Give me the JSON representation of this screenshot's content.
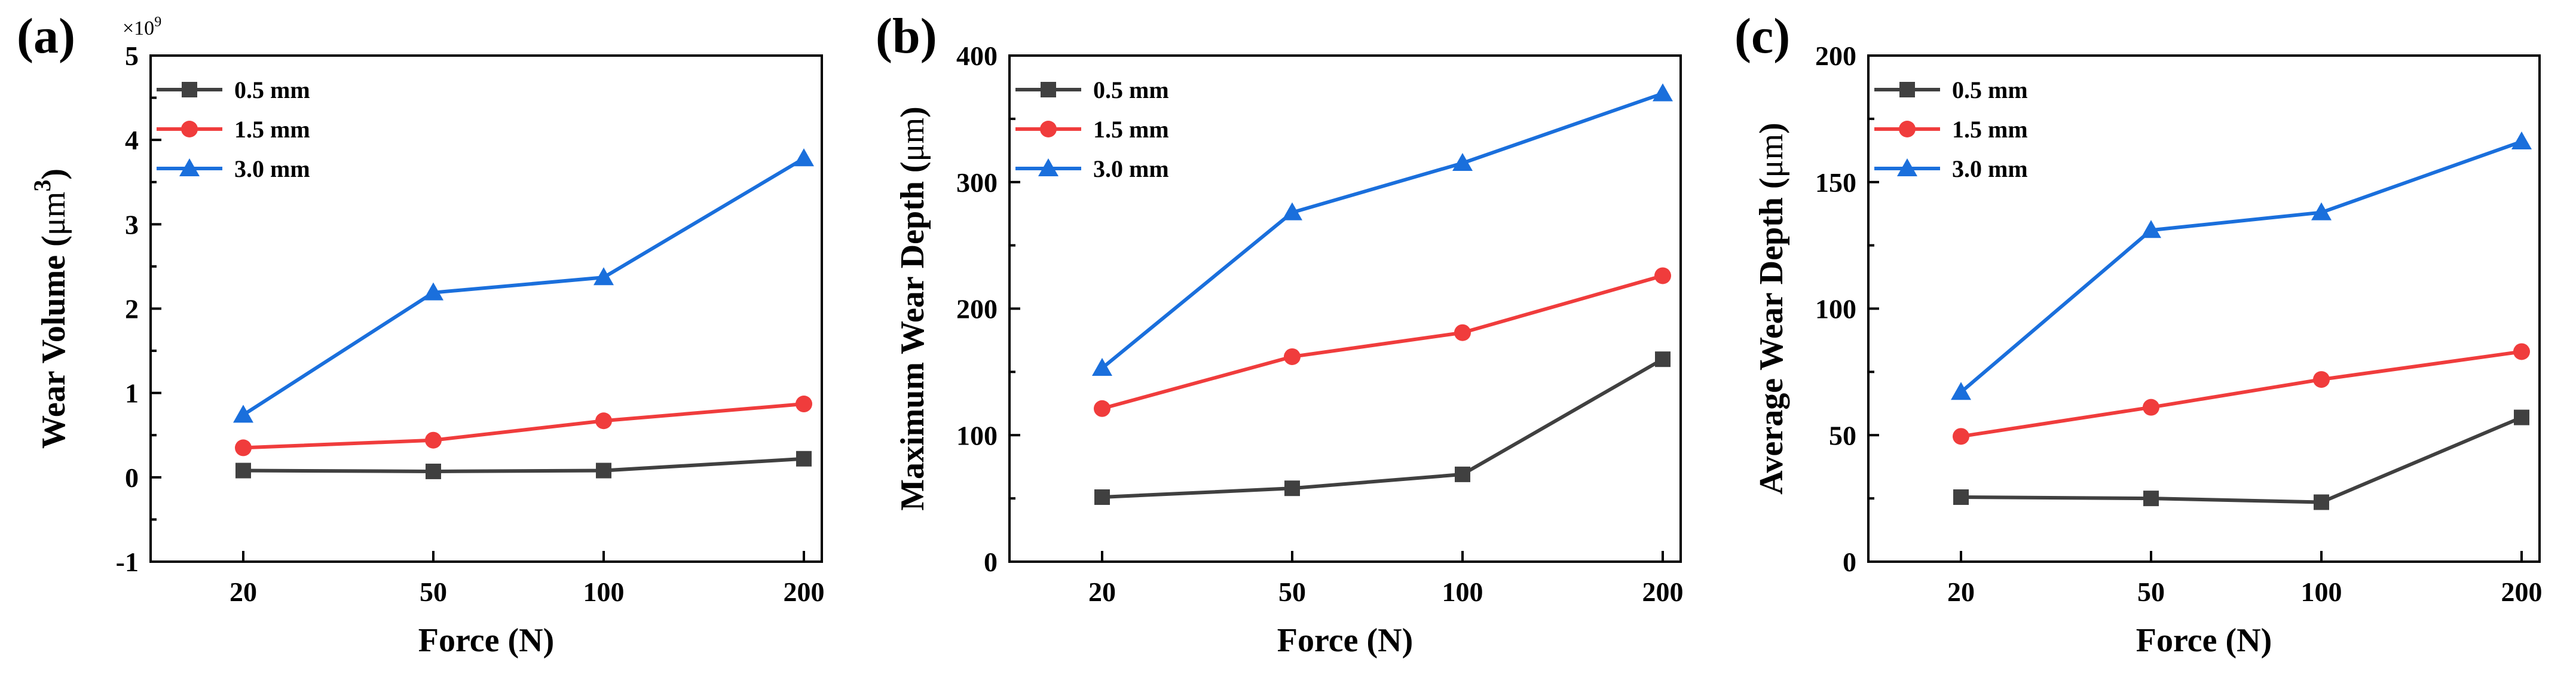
{
  "chart_data": [
    {
      "type": "line",
      "panel_label": "(a)",
      "title": "",
      "xlabel": "Force (N)",
      "ylabel_parts": [
        "Wear Volume (",
        "μm",
        "3",
        ")"
      ],
      "y_multiplier": {
        "base": "×10",
        "exp": "9"
      },
      "categories": [
        "20",
        "50",
        "100",
        "200"
      ],
      "ylim": [
        -1,
        5
      ],
      "yticks": [
        "-1",
        "0",
        "1",
        "2",
        "3",
        "4",
        "5"
      ],
      "series": [
        {
          "name": "0.5 mm",
          "color": "#404040",
          "marker": "square",
          "values": [
            0.08,
            0.07,
            0.08,
            0.22
          ]
        },
        {
          "name": "1.5 mm",
          "color": "#f03c3c",
          "marker": "circle",
          "values": [
            0.35,
            0.44,
            0.67,
            0.87
          ]
        },
        {
          "name": "3.0 mm",
          "color": "#1a6fdc",
          "marker": "triangle",
          "values": [
            0.74,
            2.19,
            2.37,
            3.78
          ]
        }
      ],
      "legend_position": "top-left"
    },
    {
      "type": "line",
      "panel_label": "(b)",
      "title": "",
      "xlabel": "Force (N)",
      "ylabel_parts": [
        "Maximum Wear Depth (",
        "μm",
        "",
        ")"
      ],
      "categories": [
        "20",
        "50",
        "100",
        "200"
      ],
      "ylim": [
        0,
        400
      ],
      "yticks": [
        "0",
        "100",
        "200",
        "300",
        "400"
      ],
      "series": [
        {
          "name": "0.5 mm",
          "color": "#404040",
          "marker": "square",
          "values": [
            51,
            58,
            69,
            160
          ]
        },
        {
          "name": "1.5 mm",
          "color": "#f03c3c",
          "marker": "circle",
          "values": [
            121,
            162,
            181,
            226
          ]
        },
        {
          "name": "3.0 mm",
          "color": "#1a6fdc",
          "marker": "triangle",
          "values": [
            153,
            276,
            315,
            370
          ]
        }
      ],
      "legend_position": "top-left"
    },
    {
      "type": "line",
      "panel_label": "(c)",
      "title": "",
      "xlabel": "Force (N)",
      "ylabel_parts": [
        "Average Wear Depth (",
        "μm",
        "",
        ")"
      ],
      "categories": [
        "20",
        "50",
        "100",
        "200"
      ],
      "ylim": [
        0,
        200
      ],
      "yticks": [
        "0",
        "50",
        "100",
        "150",
        "200"
      ],
      "series": [
        {
          "name": "0.5 mm",
          "color": "#404040",
          "marker": "square",
          "values": [
            25.5,
            25,
            23.5,
            57
          ]
        },
        {
          "name": "1.5 mm",
          "color": "#f03c3c",
          "marker": "circle",
          "values": [
            49.5,
            61,
            72,
            83
          ]
        },
        {
          "name": "3.0 mm",
          "color": "#1a6fdc",
          "marker": "triangle",
          "values": [
            67,
            131,
            138,
            166
          ]
        }
      ],
      "legend_position": "top-left"
    }
  ]
}
